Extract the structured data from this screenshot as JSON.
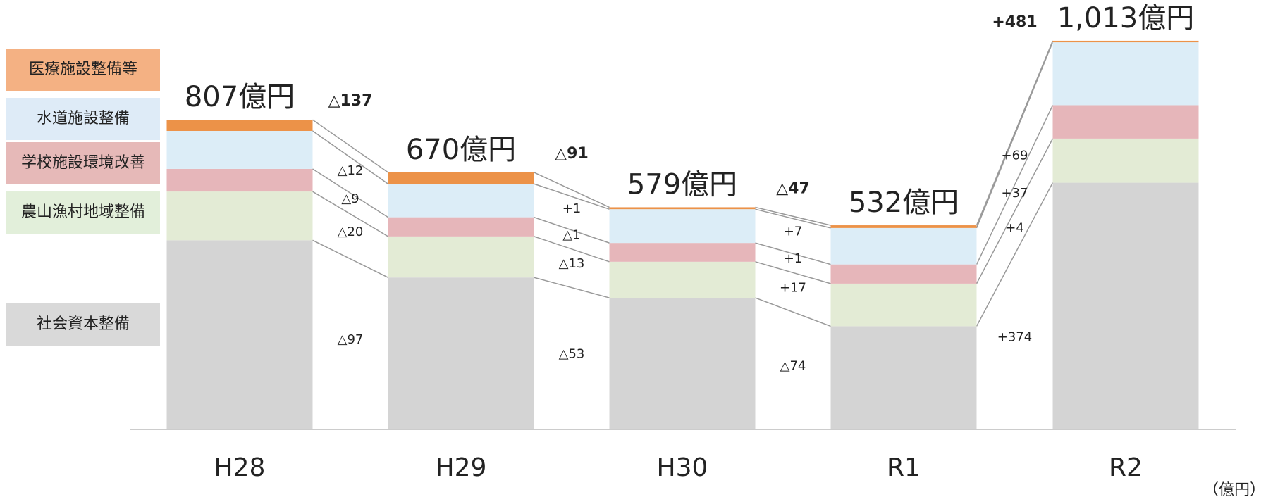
{
  "chart_data": {
    "type": "bar",
    "stacked": true,
    "categories": [
      "H28",
      "H29",
      "H30",
      "R1",
      "R2"
    ],
    "series": [
      {
        "name": "社会資本整備",
        "color": "#d4d4d4",
        "legend_color": "#d9d9d9",
        "values": [
          493,
          396,
          343,
          269,
          643
        ],
        "changes": [
          "△97",
          "△53",
          "△74",
          "+374"
        ]
      },
      {
        "name": "農山漁村地域整備",
        "color": "#e3ebd5",
        "legend_color": "#e2efda",
        "values": [
          127,
          107,
          94,
          111,
          115
        ],
        "changes": [
          "△20",
          "△13",
          "+17",
          "+4"
        ]
      },
      {
        "name": "学校施設環境改善",
        "color": "#e6b6ba",
        "legend_color": "#e6b9b8",
        "values": [
          59,
          50,
          49,
          50,
          87
        ],
        "changes": [
          "△9",
          "△1",
          "+1",
          "+37"
        ]
      },
      {
        "name": "水道施設整備",
        "color": "#dcedf7",
        "legend_color": "#deebf7",
        "values": [
          99,
          87,
          88,
          95,
          164
        ],
        "changes": [
          "△12",
          "+1",
          "+7",
          "+69"
        ]
      },
      {
        "name": "医療施設整備等",
        "color": "#ec9248",
        "legend_color": "#f4b183",
        "values": [
          29,
          30,
          5,
          7,
          4
        ]
      }
    ],
    "totals": {
      "values": [
        807,
        670,
        579,
        532,
        1013
      ],
      "value_labels": [
        "807億円",
        "670億円",
        "579億円",
        "532億円",
        "1,013億円"
      ],
      "changes": [
        "△137",
        "△91",
        "△47",
        "+481"
      ]
    },
    "unit_label": "（億円）"
  }
}
